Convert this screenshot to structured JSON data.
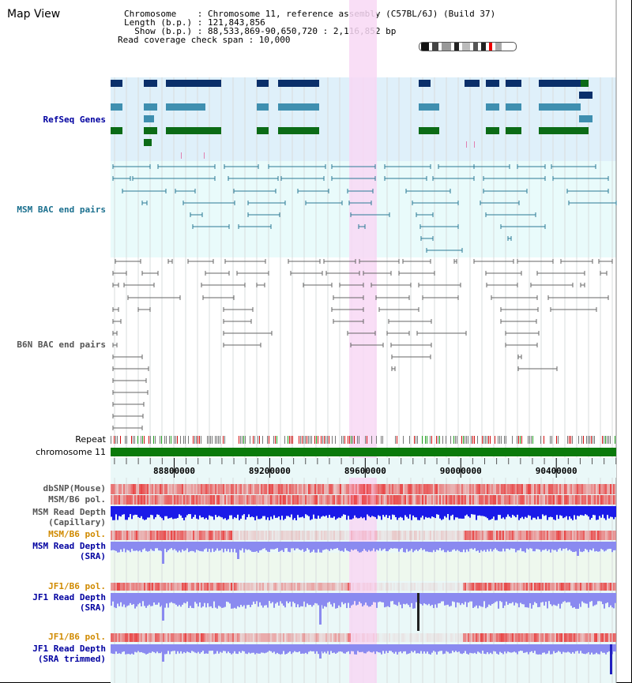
{
  "view": {
    "title": "Map View",
    "chromosome_line": "Chromosome    : Chromosome 11, reference assembly (C57BL/6J) (Build 37)",
    "length_line": "Length (b.p.) : 121,843,856",
    "show_line": "  Show (b.p.) : 88,533,869-90,650,720 : 2,116,852 bp",
    "coverage_line": "Read coverage check span : 10,000"
  },
  "tracks": {
    "refseq": "RefSeq Genes",
    "msm_bac": "MSM BAC end pairs",
    "b6n_bac": "B6N BAC end pairs",
    "repeat": "Repeat",
    "chromosome": "chromosome 11",
    "dbsnp": "dbSNP(Mouse)",
    "msm_b6_pol": "MSM/B6 pol.",
    "msm_depth_cap_1": "MSM Read Depth",
    "msm_depth_cap_2": "(Capillary)",
    "msm_b6_pol_2": "MSM/B6 pol.",
    "msm_depth_sra_1": "MSM Read Depth",
    "msm_depth_sra_2": "(SRA)",
    "jf1_b6_pol": "JF1/B6 pol.",
    "jf1_depth_sra_1": "JF1 Read Depth",
    "jf1_depth_sra_2": "(SRA)",
    "jf1_b6_pol_2": "JF1/B6 pol.",
    "jf1_depth_trim_1": "JF1 Read Depth",
    "jf1_depth_trim_2": "(SRA trimmed)"
  },
  "axis": {
    "ticks": [
      "88800000",
      "89200000",
      "89600000",
      "90000000",
      "90400000"
    ],
    "tick_values": [
      88800000,
      89200000,
      89600000,
      90000000,
      90400000
    ],
    "range_start": 88533869,
    "range_end": 90650720
  },
  "colors": {
    "refseq_bg": "#dff0fa",
    "bac_bg": "#e9fbfb",
    "highlight": "#f8d8f4",
    "navy": "#0a2f6a",
    "teal": "#3f8fb0",
    "green": "#0b6b16",
    "bac_line": "#2a7a95",
    "b6n_line": "#666666",
    "label_blue": "#0000a0",
    "label_orange": "#d08a00",
    "label_teal": "#1a6f8e",
    "chromosome_bar": "#0b7a0b",
    "depth_blue": "#2020e0",
    "depth_light": "#8a8af0"
  }
}
